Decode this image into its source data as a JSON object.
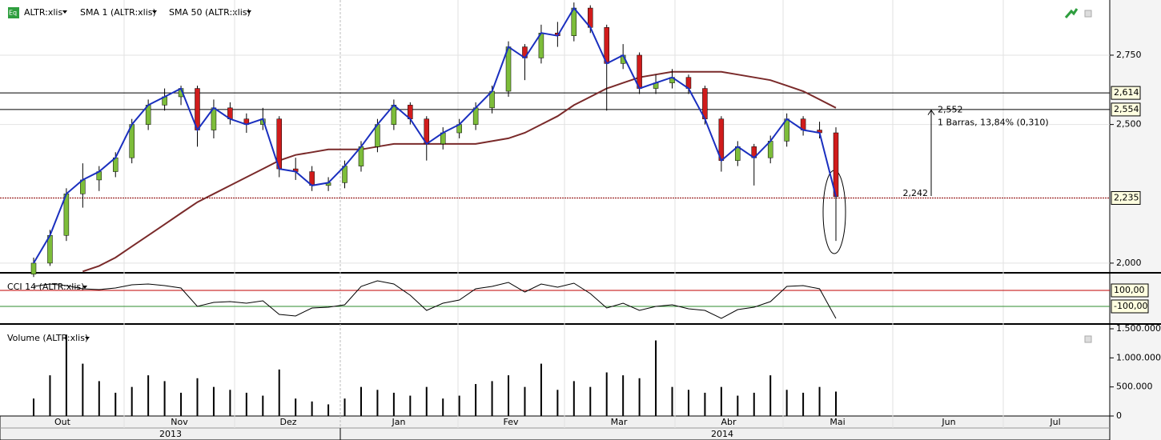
{
  "chart_data": {
    "type": "candlestick",
    "symbol": "ALTR:xlis",
    "sma1_label": "SMA 1 (ALTR:xlis)",
    "sma50_label": "SMA 50 (ALTR:xlis)",
    "sma1_color": "#1a2fbf",
    "sma50_color": "#7a2a2a",
    "up_color": "#7dbd3a",
    "down_color": "#d01c1c",
    "ylim": [
      1.968,
      2.949
    ],
    "yticks": [
      {
        "value": 2.0,
        "label": "2,000"
      },
      {
        "value": 2.5,
        "label": "2,500"
      },
      {
        "value": 2.75,
        "label": "2,750"
      }
    ],
    "candles": [
      [
        1.96,
        2.02,
        1.95,
        2.0
      ],
      [
        2.0,
        2.12,
        1.99,
        2.1
      ],
      [
        2.1,
        2.27,
        2.08,
        2.25
      ],
      [
        2.25,
        2.36,
        2.2,
        2.3
      ],
      [
        2.3,
        2.35,
        2.26,
        2.33
      ],
      [
        2.33,
        2.4,
        2.31,
        2.38
      ],
      [
        2.38,
        2.52,
        2.36,
        2.5
      ],
      [
        2.5,
        2.59,
        2.48,
        2.57
      ],
      [
        2.57,
        2.63,
        2.55,
        2.6
      ],
      [
        2.6,
        2.64,
        2.57,
        2.63
      ],
      [
        2.63,
        2.64,
        2.42,
        2.48
      ],
      [
        2.48,
        2.59,
        2.45,
        2.56
      ],
      [
        2.56,
        2.58,
        2.5,
        2.52
      ],
      [
        2.52,
        2.54,
        2.47,
        2.5
      ],
      [
        2.5,
        2.56,
        2.48,
        2.52
      ],
      [
        2.52,
        2.53,
        2.31,
        2.34
      ],
      [
        2.34,
        2.38,
        2.3,
        2.33
      ],
      [
        2.33,
        2.35,
        2.26,
        2.28
      ],
      [
        2.28,
        2.31,
        2.26,
        2.29
      ],
      [
        2.29,
        2.37,
        2.27,
        2.35
      ],
      [
        2.35,
        2.44,
        2.33,
        2.42
      ],
      [
        2.42,
        2.52,
        2.4,
        2.5
      ],
      [
        2.5,
        2.59,
        2.48,
        2.57
      ],
      [
        2.57,
        2.58,
        2.5,
        2.52
      ],
      [
        2.52,
        2.53,
        2.37,
        2.43
      ],
      [
        2.43,
        2.49,
        2.41,
        2.47
      ],
      [
        2.47,
        2.52,
        2.45,
        2.5
      ],
      [
        2.5,
        2.58,
        2.48,
        2.56
      ],
      [
        2.56,
        2.64,
        2.54,
        2.62
      ],
      [
        2.62,
        2.8,
        2.6,
        2.78
      ],
      [
        2.78,
        2.79,
        2.66,
        2.74
      ],
      [
        2.74,
        2.86,
        2.72,
        2.83
      ],
      [
        2.83,
        2.87,
        2.78,
        2.82
      ],
      [
        2.82,
        2.94,
        2.8,
        2.92
      ],
      [
        2.92,
        2.93,
        2.83,
        2.85
      ],
      [
        2.85,
        2.86,
        2.55,
        2.72
      ],
      [
        2.72,
        2.79,
        2.7,
        2.75
      ],
      [
        2.75,
        2.76,
        2.61,
        2.63
      ],
      [
        2.63,
        2.68,
        2.61,
        2.65
      ],
      [
        2.65,
        2.7,
        2.63,
        2.67
      ],
      [
        2.67,
        2.68,
        2.61,
        2.63
      ],
      [
        2.63,
        2.64,
        2.5,
        2.52
      ],
      [
        2.52,
        2.53,
        2.33,
        2.37
      ],
      [
        2.37,
        2.44,
        2.35,
        2.42
      ],
      [
        2.42,
        2.43,
        2.28,
        2.38
      ],
      [
        2.38,
        2.46,
        2.36,
        2.44
      ],
      [
        2.44,
        2.54,
        2.42,
        2.52
      ],
      [
        2.52,
        2.53,
        2.46,
        2.48
      ],
      [
        2.48,
        2.51,
        2.45,
        2.47
      ],
      [
        2.47,
        2.49,
        2.08,
        2.24
      ]
    ],
    "sma50": [
      null,
      null,
      null,
      1.97,
      1.99,
      2.02,
      2.06,
      2.1,
      2.14,
      2.18,
      2.22,
      2.25,
      2.28,
      2.31,
      2.34,
      2.37,
      2.39,
      2.4,
      2.41,
      2.41,
      2.41,
      2.42,
      2.43,
      2.43,
      2.43,
      2.43,
      2.43,
      2.43,
      2.44,
      2.45,
      2.47,
      2.5,
      2.53,
      2.57,
      2.6,
      2.63,
      2.65,
      2.67,
      2.68,
      2.69,
      2.69,
      2.69,
      2.69,
      2.68,
      2.67,
      2.66,
      2.64,
      2.62,
      2.59,
      2.56
    ],
    "levels": [
      {
        "value": 2.614,
        "label": "2,614",
        "color": "#000000"
      },
      {
        "value": 2.554,
        "label": "2,554",
        "color": "#000000"
      },
      {
        "value": 2.235,
        "label": "2,235",
        "color": "#8b0000"
      }
    ],
    "measure": {
      "from": {
        "value": 2.242,
        "label": "2,242"
      },
      "to": {
        "value": 2.552,
        "label": "2,552"
      },
      "text": "1 Barras, 13,84% (0,310)"
    },
    "cci": {
      "label": "CCI 14 (ALTR:xlis)",
      "ylim": [
        -320,
        280
      ],
      "yticks": [
        {
          "value": 100,
          "label": "100,00",
          "color": "#c00000"
        },
        {
          "value": -100,
          "label": "-100,00",
          "color": "#2e8b2e"
        }
      ],
      "values": [
        150,
        180,
        160,
        120,
        110,
        130,
        170,
        180,
        160,
        130,
        -100,
        -50,
        -40,
        -60,
        -30,
        -200,
        -220,
        -120,
        -110,
        -80,
        150,
        220,
        180,
        40,
        -150,
        -60,
        -20,
        120,
        150,
        200,
        80,
        180,
        140,
        190,
        60,
        -120,
        -60,
        -150,
        -100,
        -80,
        -130,
        -150,
        -250,
        -140,
        -110,
        -40,
        150,
        160,
        120,
        -250
      ]
    },
    "volume": {
      "label": "Volume (ALTR:xlis)",
      "ylim": [
        0,
        1500000
      ],
      "yticks": [
        0,
        {
          "value": 500000,
          "label": "500.000"
        },
        {
          "value": 1000000,
          "label": "1.000.000"
        },
        {
          "value": 1500000,
          "label": "1.500.000"
        }
      ],
      "values": [
        300000,
        700000,
        1400000,
        900000,
        600000,
        400000,
        500000,
        700000,
        600000,
        400000,
        650000,
        500000,
        450000,
        400000,
        350000,
        800000,
        300000,
        250000,
        200000,
        300000,
        500000,
        450000,
        400000,
        350000,
        500000,
        300000,
        350000,
        550000,
        600000,
        700000,
        500000,
        900000,
        450000,
        600000,
        500000,
        750000,
        700000,
        650000,
        1300000,
        500000,
        450000,
        400000,
        500000,
        350000,
        400000,
        700000,
        450000,
        400000,
        500000,
        420000
      ]
    },
    "months": [
      "Out",
      "Nov",
      "Dez",
      "Jan",
      "Fev",
      "Mar",
      "Abr",
      "Mai",
      "Jun",
      "Jul"
    ],
    "years": [
      "2013",
      "2014"
    ]
  }
}
